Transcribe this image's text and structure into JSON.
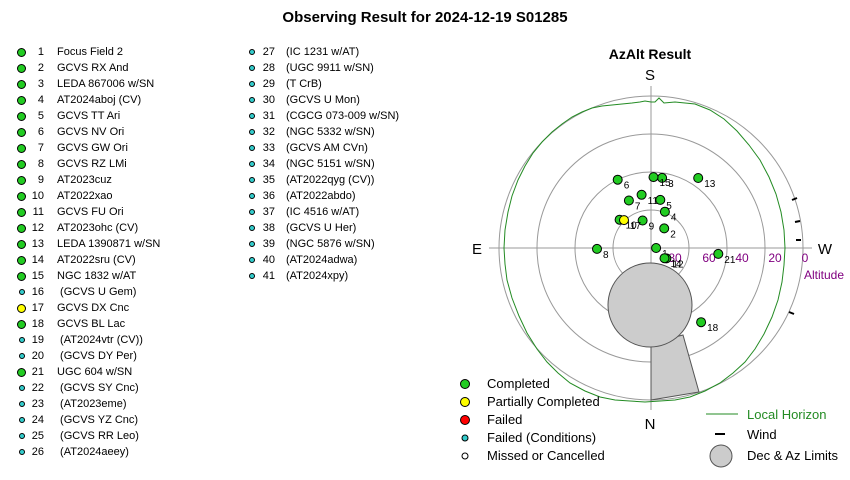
{
  "title": "Observing Result for 2024-12-19 S01285",
  "plot": {
    "title": "AzAlt Result",
    "directions": {
      "n": "N",
      "s": "S",
      "e": "E",
      "w": "W"
    },
    "altitude_ticks": [
      "80",
      "60",
      "40",
      "20",
      "0"
    ],
    "altitude_label": "Altitude"
  },
  "legend": {
    "completed": "Completed",
    "partial": "Partially Completed",
    "failed": "Failed",
    "failed_conditions": "Failed (Conditions)",
    "missed": "Missed or Cancelled",
    "horizon": "Local Horizon",
    "wind": "Wind",
    "limits": "Dec & Az Limits"
  },
  "colors": {
    "completed": "#22cc22",
    "partial": "#ffff00",
    "failed": "#ff0000",
    "failed_conditions": "#33cccc",
    "missed": "#ffffff",
    "horizon": "#238b23",
    "limits": "#cccccc",
    "grid": "#999999",
    "altitude_label": "#800080"
  },
  "targets": [
    {
      "n": "1",
      "name": "Focus Field 2",
      "status": "completed"
    },
    {
      "n": "2",
      "name": "GCVS RX And",
      "status": "completed"
    },
    {
      "n": "3",
      "name": "LEDA 867006 w/SN",
      "status": "completed"
    },
    {
      "n": "4",
      "name": "AT2024aboj (CV)",
      "status": "completed"
    },
    {
      "n": "5",
      "name": "GCVS TT Ari",
      "status": "completed"
    },
    {
      "n": "6",
      "name": "GCVS NV Ori",
      "status": "completed"
    },
    {
      "n": "7",
      "name": "GCVS GW Ori",
      "status": "completed"
    },
    {
      "n": "8",
      "name": "GCVS RZ LMi",
      "status": "completed"
    },
    {
      "n": "9",
      "name": "AT2023cuz",
      "status": "completed"
    },
    {
      "n": "10",
      "name": "AT2022xao",
      "status": "completed"
    },
    {
      "n": "11",
      "name": "GCVS FU Ori",
      "status": "completed"
    },
    {
      "n": "12",
      "name": "AT2023ohc (CV)",
      "status": "completed"
    },
    {
      "n": "13",
      "name": "LEDA 1390871 w/SN",
      "status": "completed"
    },
    {
      "n": "14",
      "name": "AT2022sru (CV)",
      "status": "completed"
    },
    {
      "n": "15",
      "name": "NGC 1832 w/AT",
      "status": "completed"
    },
    {
      "n": "16",
      "name": " (GCVS U Gem)",
      "status": "failed_conditions"
    },
    {
      "n": "17",
      "name": "GCVS DX Cnc",
      "status": "partial"
    },
    {
      "n": "18",
      "name": "GCVS BL Lac",
      "status": "completed"
    },
    {
      "n": "19",
      "name": " (AT2024vtr (CV))",
      "status": "failed_conditions"
    },
    {
      "n": "20",
      "name": " (GCVS DY Per)",
      "status": "failed_conditions"
    },
    {
      "n": "21",
      "name": "UGC 604 w/SN",
      "status": "completed"
    },
    {
      "n": "22",
      "name": " (GCVS SY Cnc)",
      "status": "failed_conditions"
    },
    {
      "n": "23",
      "name": " (AT2023eme)",
      "status": "failed_conditions"
    },
    {
      "n": "24",
      "name": " (GCVS YZ Cnc)",
      "status": "failed_conditions"
    },
    {
      "n": "25",
      "name": " (GCVS RR Leo)",
      "status": "failed_conditions"
    },
    {
      "n": "26",
      "name": " (AT2024aeey)",
      "status": "failed_conditions"
    },
    {
      "n": "27",
      "name": "(IC 1231 w/AT)",
      "status": "failed_conditions"
    },
    {
      "n": "28",
      "name": "(UGC 9911 w/SN)",
      "status": "failed_conditions"
    },
    {
      "n": "29",
      "name": "(T CrB)",
      "status": "failed_conditions"
    },
    {
      "n": "30",
      "name": "(GCVS U Mon)",
      "status": "failed_conditions"
    },
    {
      "n": "31",
      "name": "(CGCG 073-009 w/SN)",
      "status": "failed_conditions"
    },
    {
      "n": "32",
      "name": "(NGC 5332 w/SN)",
      "status": "failed_conditions"
    },
    {
      "n": "33",
      "name": "(GCVS AM CVn)",
      "status": "failed_conditions"
    },
    {
      "n": "34",
      "name": "(NGC 5151 w/SN)",
      "status": "failed_conditions"
    },
    {
      "n": "35",
      "name": "(AT2022qyg (CV))",
      "status": "failed_conditions"
    },
    {
      "n": "36",
      "name": "(AT2022abdo)",
      "status": "failed_conditions"
    },
    {
      "n": "37",
      "name": "(IC 4516 w/AT)",
      "status": "failed_conditions"
    },
    {
      "n": "38",
      "name": "(GCVS U Her)",
      "status": "failed_conditions"
    },
    {
      "n": "39",
      "name": "(NGC 5876 w/SN)",
      "status": "failed_conditions"
    },
    {
      "n": "40",
      "name": "(AT2024adwa)",
      "status": "failed_conditions"
    },
    {
      "n": "41",
      "name": "(AT2024xpy)",
      "status": "failed_conditions"
    }
  ],
  "plotted_points": [
    {
      "label": "1",
      "az": 90,
      "alt": 87,
      "status": "completed"
    },
    {
      "label": "2",
      "az": 34,
      "alt": 76,
      "status": "completed"
    },
    {
      "label": "3",
      "az": 9,
      "alt": 48,
      "status": "completed"
    },
    {
      "label": "4",
      "az": 21,
      "alt": 67,
      "status": "completed"
    },
    {
      "label": "5",
      "az": 11,
      "alt": 61,
      "status": "completed"
    },
    {
      "label": "6",
      "az": 334,
      "alt": 45,
      "status": "completed"
    },
    {
      "label": "7",
      "az": 335,
      "alt": 59,
      "status": "completed"
    },
    {
      "label": "8",
      "az": 269,
      "alt": 58,
      "status": "completed"
    },
    {
      "label": "9",
      "az": 343,
      "alt": 73,
      "status": "completed"
    },
    {
      "label": "10",
      "az": 312,
      "alt": 65,
      "status": "completed"
    },
    {
      "label": "11",
      "az": 350,
      "alt": 58,
      "status": "completed"
    },
    {
      "label": "12",
      "az": 124,
      "alt": 79,
      "status": "completed"
    },
    {
      "label": "13",
      "az": 34,
      "alt": 40,
      "status": "completed"
    },
    {
      "label": "14",
      "az": 127,
      "alt": 80,
      "status": "completed"
    },
    {
      "label": "15",
      "az": 2,
      "alt": 48,
      "status": "completed"
    },
    {
      "label": "17",
      "az": 316,
      "alt": 67,
      "status": "partial"
    },
    {
      "label": "18",
      "az": 146,
      "alt": 37,
      "status": "completed"
    },
    {
      "label": "21",
      "az": 95,
      "alt": 50,
      "status": "completed"
    }
  ]
}
